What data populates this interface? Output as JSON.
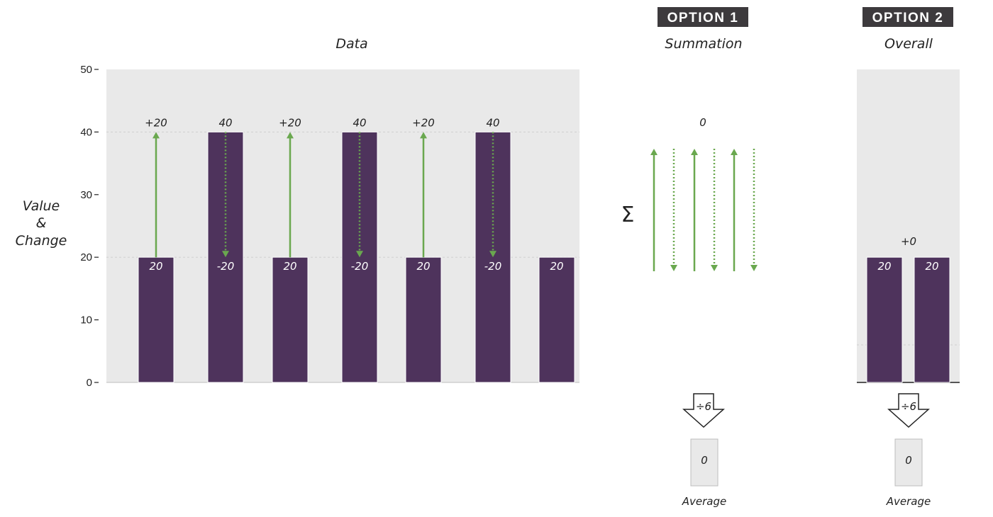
{
  "badges": {
    "option1": "OPTION 1",
    "option2": "OPTION 2"
  },
  "titles": {
    "data": "Data",
    "summation": "Summation",
    "overall": "Overall"
  },
  "y_axis": {
    "label_line1": "Value",
    "label_line2": "&",
    "label_line3": "Change"
  },
  "sigma_symbol": "Σ",
  "divide_label": "÷6",
  "summation_result": "0",
  "overall_change_label": "+0",
  "averages": [
    {
      "value": "0",
      "label": "Average"
    },
    {
      "value": "0",
      "label": "Average"
    }
  ],
  "colors": {
    "bar": "#4e335c",
    "arrow": "#6aa84f",
    "panel": "#e9e9e9",
    "badge": "#3d3a3d"
  },
  "chart_data": [
    {
      "panel": "Data",
      "type": "bar",
      "ylim": [
        0,
        50
      ],
      "yticks": [
        0,
        10,
        20,
        30,
        40,
        50
      ],
      "grid": [
        20,
        40
      ],
      "values": [
        20,
        40,
        20,
        40,
        20,
        40,
        20
      ],
      "bar_labels": [
        "20",
        "40",
        "20",
        "40",
        "20",
        "40",
        "20"
      ],
      "changes": [
        {
          "from_bar": 0,
          "to_bar": 1,
          "delta": 20,
          "label": "+20",
          "style": "solid"
        },
        {
          "from_bar": 1,
          "to_bar": 2,
          "delta": -20,
          "label": "-20",
          "style": "dotted"
        },
        {
          "from_bar": 2,
          "to_bar": 3,
          "delta": 20,
          "label": "+20",
          "style": "solid"
        },
        {
          "from_bar": 3,
          "to_bar": 4,
          "delta": -20,
          "label": "-20",
          "style": "dotted"
        },
        {
          "from_bar": 4,
          "to_bar": 5,
          "delta": 20,
          "label": "+20",
          "style": "solid"
        },
        {
          "from_bar": 5,
          "to_bar": 6,
          "delta": -20,
          "label": "-20",
          "style": "dotted"
        }
      ]
    },
    {
      "panel": "Summation",
      "type": "arrows",
      "changes": [
        20,
        -20,
        20,
        -20,
        20,
        -20
      ],
      "sum": 0
    },
    {
      "panel": "Overall",
      "type": "bar",
      "ylim": [
        0,
        50
      ],
      "values": [
        20,
        20
      ],
      "bar_labels": [
        "20",
        "20"
      ],
      "change_label": "+0"
    }
  ]
}
